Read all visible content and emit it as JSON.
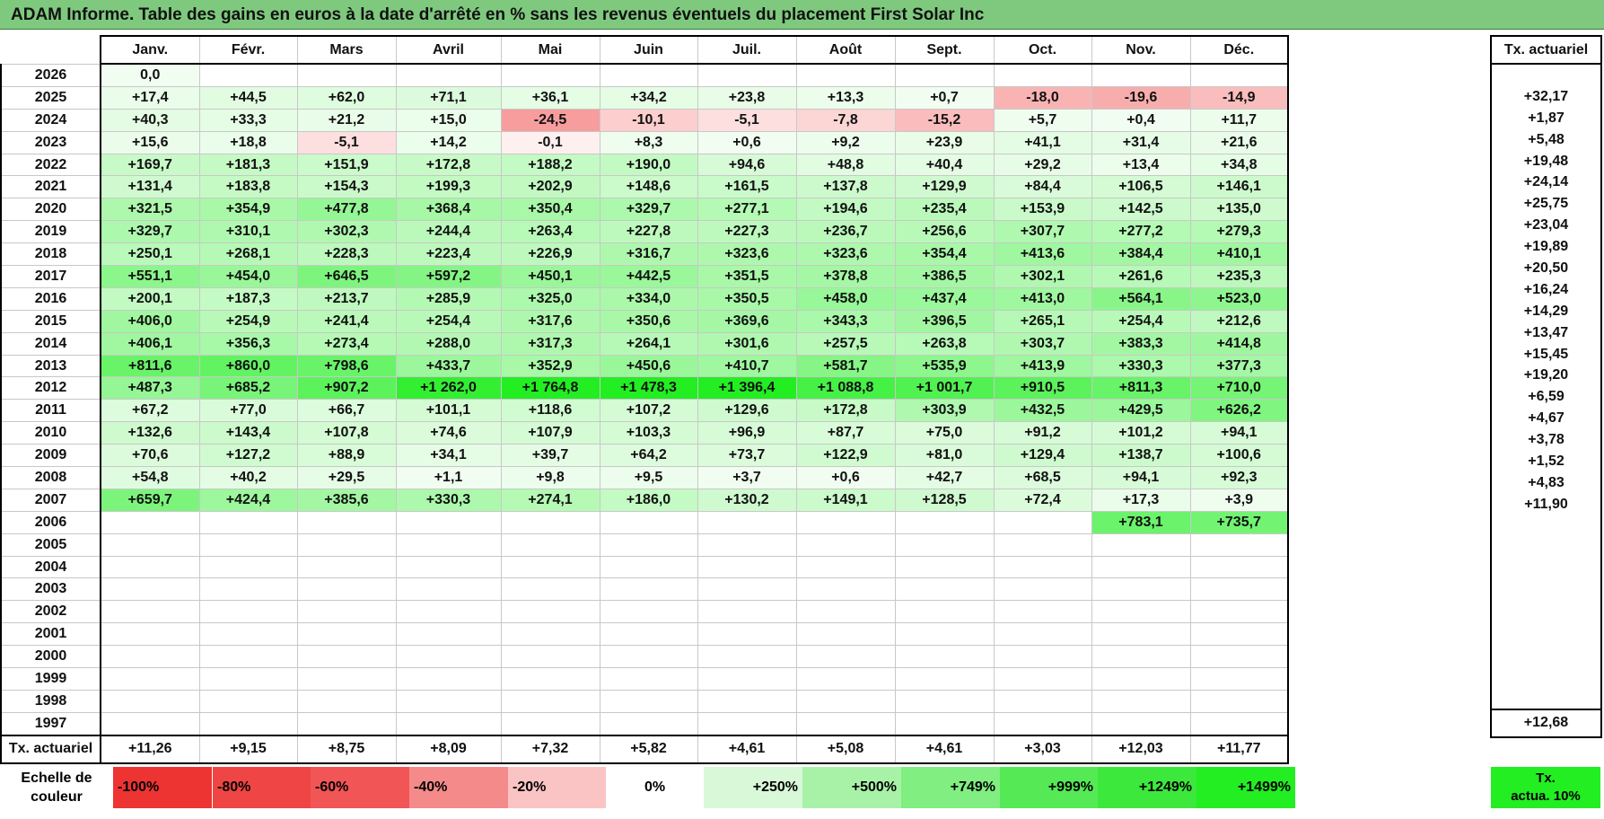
{
  "title": "ADAM Informe. Table des gains en euros à la date d'arrêté en % sans les revenus éventuels du placement First Solar Inc",
  "months": [
    "Janv.",
    "Févr.",
    "Mars",
    "Avril",
    "Mai",
    "Juin",
    "Juil.",
    "Août",
    "Sept.",
    "Oct.",
    "Nov.",
    "Déc."
  ],
  "side_header": "Tx. actuariel",
  "rows": [
    {
      "year": "2026",
      "values": [
        "0,0",
        "",
        "",
        "",
        "",
        "",
        "",
        "",
        "",
        "",
        "",
        ""
      ],
      "rate": ""
    },
    {
      "year": "2025",
      "values": [
        "+17,4",
        "+44,5",
        "+62,0",
        "+71,1",
        "+36,1",
        "+34,2",
        "+23,8",
        "+13,3",
        "+0,7",
        "-18,0",
        "-19,6",
        "-14,9"
      ],
      "rate": "+32,17"
    },
    {
      "year": "2024",
      "values": [
        "+40,3",
        "+33,3",
        "+21,2",
        "+15,0",
        "-24,5",
        "-10,1",
        "-5,1",
        "-7,8",
        "-15,2",
        "+5,7",
        "+0,4",
        "+11,7"
      ],
      "rate": "+1,87"
    },
    {
      "year": "2023",
      "values": [
        "+15,6",
        "+18,8",
        "-5,1",
        "+14,2",
        "-0,1",
        "+8,3",
        "+0,6",
        "+9,2",
        "+23,9",
        "+41,1",
        "+31,4",
        "+21,6"
      ],
      "rate": "+5,48"
    },
    {
      "year": "2022",
      "values": [
        "+169,7",
        "+181,3",
        "+151,9",
        "+172,8",
        "+188,2",
        "+190,0",
        "+94,6",
        "+48,8",
        "+40,4",
        "+29,2",
        "+13,4",
        "+34,8"
      ],
      "rate": "+19,48"
    },
    {
      "year": "2021",
      "values": [
        "+131,4",
        "+183,8",
        "+154,3",
        "+199,3",
        "+202,9",
        "+148,6",
        "+161,5",
        "+137,8",
        "+129,9",
        "+84,4",
        "+106,5",
        "+146,1"
      ],
      "rate": "+24,14"
    },
    {
      "year": "2020",
      "values": [
        "+321,5",
        "+354,9",
        "+477,8",
        "+368,4",
        "+350,4",
        "+329,7",
        "+277,1",
        "+194,6",
        "+235,4",
        "+153,9",
        "+142,5",
        "+135,0"
      ],
      "rate": "+25,75"
    },
    {
      "year": "2019",
      "values": [
        "+329,7",
        "+310,1",
        "+302,3",
        "+244,4",
        "+263,4",
        "+227,8",
        "+227,3",
        "+236,7",
        "+256,6",
        "+307,7",
        "+277,2",
        "+279,3"
      ],
      "rate": "+23,04"
    },
    {
      "year": "2018",
      "values": [
        "+250,1",
        "+268,1",
        "+228,3",
        "+223,4",
        "+226,9",
        "+316,7",
        "+323,6",
        "+323,6",
        "+354,4",
        "+413,6",
        "+384,4",
        "+410,1"
      ],
      "rate": "+19,89"
    },
    {
      "year": "2017",
      "values": [
        "+551,1",
        "+454,0",
        "+646,5",
        "+597,2",
        "+450,1",
        "+442,5",
        "+351,5",
        "+378,8",
        "+386,5",
        "+302,1",
        "+261,6",
        "+235,3"
      ],
      "rate": "+20,50"
    },
    {
      "year": "2016",
      "values": [
        "+200,1",
        "+187,3",
        "+213,7",
        "+285,9",
        "+325,0",
        "+334,0",
        "+350,5",
        "+458,0",
        "+437,4",
        "+413,0",
        "+564,1",
        "+523,0"
      ],
      "rate": "+16,24"
    },
    {
      "year": "2015",
      "values": [
        "+406,0",
        "+254,9",
        "+241,4",
        "+254,4",
        "+317,6",
        "+350,6",
        "+369,6",
        "+343,3",
        "+396,5",
        "+265,1",
        "+254,4",
        "+212,6"
      ],
      "rate": "+14,29"
    },
    {
      "year": "2014",
      "values": [
        "+406,1",
        "+356,3",
        "+273,4",
        "+288,0",
        "+317,3",
        "+264,1",
        "+301,6",
        "+257,5",
        "+263,8",
        "+303,7",
        "+383,3",
        "+414,8"
      ],
      "rate": "+13,47"
    },
    {
      "year": "2013",
      "values": [
        "+811,6",
        "+860,0",
        "+798,6",
        "+433,7",
        "+352,9",
        "+450,6",
        "+410,7",
        "+581,7",
        "+535,9",
        "+413,9",
        "+330,3",
        "+377,3"
      ],
      "rate": "+15,45"
    },
    {
      "year": "2012",
      "values": [
        "+487,3",
        "+685,2",
        "+907,2",
        "+1 262,0",
        "+1 764,8",
        "+1 478,3",
        "+1 396,4",
        "+1 088,8",
        "+1 001,7",
        "+910,5",
        "+811,3",
        "+710,0"
      ],
      "rate": "+19,20"
    },
    {
      "year": "2011",
      "values": [
        "+67,2",
        "+77,0",
        "+66,7",
        "+101,1",
        "+118,6",
        "+107,2",
        "+129,6",
        "+172,8",
        "+303,9",
        "+432,5",
        "+429,5",
        "+626,2"
      ],
      "rate": "+6,59"
    },
    {
      "year": "2010",
      "values": [
        "+132,6",
        "+143,4",
        "+107,8",
        "+74,6",
        "+107,9",
        "+103,3",
        "+96,9",
        "+87,7",
        "+75,0",
        "+91,2",
        "+101,2",
        "+94,1"
      ],
      "rate": "+4,67"
    },
    {
      "year": "2009",
      "values": [
        "+70,6",
        "+127,2",
        "+88,9",
        "+34,1",
        "+39,7",
        "+64,2",
        "+73,7",
        "+122,9",
        "+81,0",
        "+129,4",
        "+138,7",
        "+100,6"
      ],
      "rate": "+3,78"
    },
    {
      "year": "2008",
      "values": [
        "+54,8",
        "+40,2",
        "+29,5",
        "+1,1",
        "+9,8",
        "+9,5",
        "+3,7",
        "+0,6",
        "+42,7",
        "+68,5",
        "+94,1",
        "+92,3"
      ],
      "rate": "+1,52"
    },
    {
      "year": "2007",
      "values": [
        "+659,7",
        "+424,4",
        "+385,6",
        "+330,3",
        "+274,1",
        "+186,0",
        "+130,2",
        "+149,1",
        "+128,5",
        "+72,4",
        "+17,3",
        "+3,9"
      ],
      "rate": "+4,83"
    },
    {
      "year": "2006",
      "values": [
        "",
        "",
        "",
        "",
        "",
        "",
        "",
        "",
        "",
        "",
        "+783,1",
        "+735,7"
      ],
      "rate": "+11,90"
    },
    {
      "year": "2005",
      "values": [
        "",
        "",
        "",
        "",
        "",
        "",
        "",
        "",
        "",
        "",
        "",
        ""
      ],
      "rate": ""
    },
    {
      "year": "2004",
      "values": [
        "",
        "",
        "",
        "",
        "",
        "",
        "",
        "",
        "",
        "",
        "",
        ""
      ],
      "rate": ""
    },
    {
      "year": "2003",
      "values": [
        "",
        "",
        "",
        "",
        "",
        "",
        "",
        "",
        "",
        "",
        "",
        ""
      ],
      "rate": ""
    },
    {
      "year": "2002",
      "values": [
        "",
        "",
        "",
        "",
        "",
        "",
        "",
        "",
        "",
        "",
        "",
        ""
      ],
      "rate": ""
    },
    {
      "year": "2001",
      "values": [
        "",
        "",
        "",
        "",
        "",
        "",
        "",
        "",
        "",
        "",
        "",
        ""
      ],
      "rate": ""
    },
    {
      "year": "2000",
      "values": [
        "",
        "",
        "",
        "",
        "",
        "",
        "",
        "",
        "",
        "",
        "",
        ""
      ],
      "rate": ""
    },
    {
      "year": "1999",
      "values": [
        "",
        "",
        "",
        "",
        "",
        "",
        "",
        "",
        "",
        "",
        "",
        ""
      ],
      "rate": ""
    },
    {
      "year": "1998",
      "values": [
        "",
        "",
        "",
        "",
        "",
        "",
        "",
        "",
        "",
        "",
        "",
        ""
      ],
      "rate": ""
    },
    {
      "year": "1997",
      "values": [
        "",
        "",
        "",
        "",
        "",
        "",
        "",
        "",
        "",
        "",
        "",
        ""
      ],
      "rate": ""
    }
  ],
  "footer": {
    "label": "Tx. actuariel",
    "values": [
      "+11,26",
      "+9,15",
      "+8,75",
      "+8,09",
      "+7,32",
      "+5,82",
      "+4,61",
      "+5,08",
      "+4,61",
      "+3,03",
      "+12,03",
      "+11,77"
    ],
    "total": "+12,68"
  },
  "scale": {
    "label_line1": "Echelle de",
    "label_line2": "couleur",
    "swatches": [
      {
        "label": "-100%",
        "color": "#ee3333"
      },
      {
        "label": "-80%",
        "color": "#f04545"
      },
      {
        "label": "-60%",
        "color": "#f25555"
      },
      {
        "label": "-40%",
        "color": "#f58a8a"
      },
      {
        "label": "-20%",
        "color": "#fbc4c4"
      },
      {
        "label": "0%",
        "color": "#ffffff"
      },
      {
        "label": "+250%",
        "color": "#d8f8d8"
      },
      {
        "label": "+500%",
        "color": "#a8f2a8"
      },
      {
        "label": "+749%",
        "color": "#80ee80"
      },
      {
        "label": "+999%",
        "color": "#55ea55"
      },
      {
        "label": "+1249%",
        "color": "#3ce83c"
      },
      {
        "label": "+1499%",
        "color": "#22ee22"
      }
    ],
    "tx_line1": "Tx.",
    "tx_line2": "actua. 10%",
    "tx_color": "#22ee22"
  }
}
